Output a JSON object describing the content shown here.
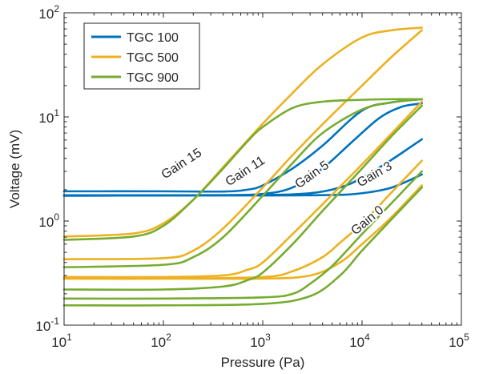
{
  "chart_data": {
    "type": "line",
    "xlabel": "Pressure (Pa)",
    "ylabel": "Voltage (mV)",
    "xscale": "log",
    "yscale": "log",
    "xlim": [
      10,
      100000
    ],
    "ylim": [
      0.1,
      100
    ],
    "x_ticks": [
      {
        "value": 10,
        "base": "10",
        "exp": "1"
      },
      {
        "value": 100,
        "base": "10",
        "exp": "2"
      },
      {
        "value": 1000,
        "base": "10",
        "exp": "3"
      },
      {
        "value": 10000,
        "base": "10",
        "exp": "4"
      },
      {
        "value": 100000,
        "base": "10",
        "exp": "5"
      }
    ],
    "y_ticks": [
      {
        "value": 0.1,
        "base": "10",
        "exp": "-1"
      },
      {
        "value": 1,
        "base": "10",
        "exp": "0"
      },
      {
        "value": 10,
        "base": "10",
        "exp": "1"
      },
      {
        "value": 100,
        "base": "10",
        "exp": "2"
      }
    ],
    "grid": false,
    "legend_position": "top-left",
    "legend": [
      {
        "name": "TGC 100",
        "color": "#0072BD"
      },
      {
        "name": "TGC 500",
        "color": "#EDB120"
      },
      {
        "name": "TGC 900",
        "color": "#77AC30"
      }
    ],
    "annotations": [
      {
        "text": "Gain 15",
        "x": 160,
        "y": 3.3,
        "angle": 33
      },
      {
        "text": "Gain 11",
        "x": 700,
        "y": 2.8,
        "angle": 33
      },
      {
        "text": "Gain 5",
        "x": 3300,
        "y": 2.6,
        "angle": 35
      },
      {
        "text": "Gain 3",
        "x": 14000,
        "y": 2.6,
        "angle": 30
      },
      {
        "text": "Gain 0",
        "x": 12000,
        "y": 0.95,
        "angle": 40
      }
    ],
    "series": [
      {
        "name": "TGC 100",
        "gain": "Gain 15",
        "color": "#0072BD",
        "x": [
          10,
          100,
          400,
          700,
          1000,
          2000,
          4000,
          10000,
          20000,
          40000
        ],
        "y": [
          1.93,
          1.93,
          1.92,
          2.0,
          2.2,
          3.2,
          5.3,
          11.5,
          13.8,
          14.8
        ]
      },
      {
        "name": "TGC 100",
        "gain": "Gain 11",
        "color": "#0072BD",
        "x": [
          10,
          100,
          400,
          1000,
          2000,
          4000,
          8000,
          15000,
          25000,
          40000
        ],
        "y": [
          1.75,
          1.76,
          1.77,
          1.82,
          2.1,
          3.2,
          5.8,
          9.8,
          12.5,
          13.5
        ]
      },
      {
        "name": "TGC 100",
        "gain": "Gain 5",
        "color": "#0072BD",
        "x": [
          10,
          100,
          1000,
          3000,
          6000,
          10000,
          20000,
          40000
        ],
        "y": [
          1.77,
          1.77,
          1.78,
          1.85,
          2.1,
          2.6,
          3.9,
          6.1
        ]
      },
      {
        "name": "TGC 100",
        "gain": "Gain 0",
        "color": "#0072BD",
        "x": [
          10,
          100,
          1000,
          5000,
          10000,
          20000,
          40000
        ],
        "y": [
          1.76,
          1.76,
          1.76,
          1.78,
          1.85,
          2.1,
          2.8
        ]
      },
      {
        "name": "TGC 500",
        "gain": "Gain 15",
        "color": "#EDB120",
        "x": [
          10,
          50,
          100,
          200,
          400,
          1000,
          2000,
          4000,
          10000,
          20000,
          40000
        ],
        "y": [
          0.71,
          0.76,
          0.95,
          1.6,
          3.3,
          8.6,
          17,
          32,
          58,
          68,
          72
        ]
      },
      {
        "name": "TGC 500",
        "gain": "Gain 11",
        "color": "#EDB120",
        "x": [
          10,
          100,
          200,
          400,
          1000,
          2000,
          4000,
          10000,
          20000,
          40000
        ],
        "y": [
          0.43,
          0.44,
          0.52,
          0.85,
          2.1,
          4.3,
          8.5,
          20,
          38,
          68
        ]
      },
      {
        "name": "TGC 500",
        "gain": "Gain 5",
        "color": "#EDB120",
        "x": [
          10,
          100,
          400,
          700,
          1000,
          2000,
          4000,
          10000,
          20000,
          40000
        ],
        "y": [
          0.29,
          0.29,
          0.3,
          0.34,
          0.4,
          0.75,
          1.45,
          3.5,
          7.0,
          14
        ]
      },
      {
        "name": "TGC 500",
        "gain": "Gain 3",
        "color": "#EDB120",
        "x": [
          10,
          100,
          1000,
          2000,
          4000,
          6000,
          10000,
          20000,
          40000
        ],
        "y": [
          0.28,
          0.28,
          0.29,
          0.33,
          0.45,
          0.62,
          0.95,
          1.9,
          3.8
        ]
      },
      {
        "name": "TGC 500",
        "gain": "Gain 0",
        "color": "#EDB120",
        "x": [
          10,
          100,
          1000,
          3000,
          6000,
          10000,
          20000,
          40000
        ],
        "y": [
          0.28,
          0.28,
          0.28,
          0.3,
          0.4,
          0.6,
          1.1,
          2.2
        ]
      },
      {
        "name": "TGC 900",
        "gain": "Gain 15",
        "color": "#77AC30",
        "x": [
          10,
          50,
          100,
          200,
          400,
          700,
          1000,
          2000,
          4000,
          10000,
          20000,
          40000
        ],
        "y": [
          0.66,
          0.71,
          0.9,
          1.6,
          3.2,
          5.8,
          8.0,
          12.2,
          14.0,
          14.6,
          14.8,
          14.8
        ]
      },
      {
        "name": "TGC 900",
        "gain": "Gain 11",
        "color": "#77AC30",
        "x": [
          10,
          100,
          200,
          400,
          1000,
          2000,
          4000,
          10000,
          20000,
          40000
        ],
        "y": [
          0.36,
          0.38,
          0.45,
          0.7,
          1.75,
          3.6,
          7.0,
          11.8,
          13.8,
          14.8
        ]
      },
      {
        "name": "TGC 900",
        "gain": "Gain 5",
        "color": "#77AC30",
        "x": [
          10,
          100,
          400,
          700,
          1000,
          2000,
          4000,
          10000,
          20000,
          40000
        ],
        "y": [
          0.22,
          0.22,
          0.235,
          0.27,
          0.32,
          0.6,
          1.25,
          3.2,
          6.6,
          12.8
        ]
      },
      {
        "name": "TGC 900",
        "gain": "Gain 3",
        "color": "#77AC30",
        "x": [
          10,
          100,
          1000,
          2000,
          3000,
          5000,
          10000,
          20000,
          40000
        ],
        "y": [
          0.18,
          0.18,
          0.185,
          0.2,
          0.25,
          0.37,
          0.75,
          1.5,
          3.0
        ]
      },
      {
        "name": "TGC 900",
        "gain": "Gain 0",
        "color": "#77AC30",
        "x": [
          10,
          100,
          1000,
          3000,
          6000,
          10000,
          20000,
          40000
        ],
        "y": [
          0.155,
          0.155,
          0.16,
          0.19,
          0.3,
          0.52,
          1.05,
          2.1
        ]
      }
    ]
  }
}
